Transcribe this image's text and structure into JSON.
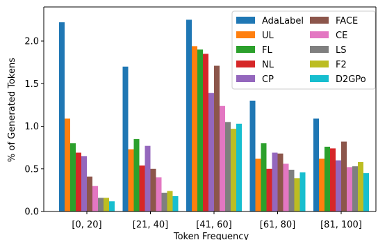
{
  "chart_data": {
    "type": "bar",
    "xlabel": "Token Frequency",
    "ylabel": "% of Generated Tokens",
    "categories": [
      "[0, 20]",
      "[21, 40]",
      "[41, 60]",
      "[61, 80]",
      "[81, 100]"
    ],
    "ylim": [
      0,
      2.4
    ],
    "yticks": [
      "0.0",
      "0.5",
      "1.0",
      "1.5",
      "2.0"
    ],
    "grid": false,
    "legend_position": "top-right",
    "legend_columns": 2,
    "series": [
      {
        "name": "AdaLabel",
        "color": "#1f77b4",
        "values": [
          2.22,
          1.7,
          2.25,
          1.3,
          1.09
        ]
      },
      {
        "name": "UL",
        "color": "#ff7f0e",
        "values": [
          1.09,
          0.73,
          1.94,
          0.62,
          0.62
        ]
      },
      {
        "name": "FL",
        "color": "#2ca02c",
        "values": [
          0.8,
          0.85,
          1.9,
          0.8,
          0.76
        ]
      },
      {
        "name": "NL",
        "color": "#d62728",
        "values": [
          0.69,
          0.54,
          1.85,
          0.5,
          0.74
        ]
      },
      {
        "name": "CP",
        "color": "#9467bd",
        "values": [
          0.65,
          0.77,
          1.39,
          0.69,
          0.6
        ]
      },
      {
        "name": "FACE",
        "color": "#8c564b",
        "values": [
          0.41,
          0.5,
          1.71,
          0.68,
          0.82
        ]
      },
      {
        "name": "CE",
        "color": "#e377c2",
        "values": [
          0.3,
          0.4,
          1.24,
          0.56,
          0.52
        ]
      },
      {
        "name": "LS",
        "color": "#7f7f7f",
        "values": [
          0.16,
          0.22,
          1.05,
          0.49,
          0.53
        ]
      },
      {
        "name": "F2",
        "color": "#bcbd22",
        "values": [
          0.16,
          0.24,
          0.97,
          0.39,
          0.58
        ]
      },
      {
        "name": "D2GPo",
        "color": "#17becf",
        "values": [
          0.12,
          0.18,
          1.03,
          0.46,
          0.45
        ]
      }
    ]
  }
}
